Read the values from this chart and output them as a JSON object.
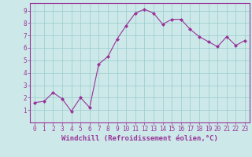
{
  "x": [
    0,
    1,
    2,
    3,
    4,
    5,
    6,
    7,
    8,
    9,
    10,
    11,
    12,
    13,
    14,
    15,
    16,
    17,
    18,
    19,
    20,
    21,
    22,
    23
  ],
  "y": [
    1.6,
    1.7,
    2.4,
    1.9,
    0.9,
    2.0,
    1.2,
    4.7,
    5.3,
    6.7,
    7.8,
    8.8,
    9.1,
    8.8,
    7.9,
    8.3,
    8.3,
    7.5,
    6.9,
    6.5,
    6.1,
    6.9,
    6.2,
    6.6
  ],
  "line_color": "#993399",
  "marker": "D",
  "marker_size": 2,
  "bg_color": "#cce8e8",
  "grid_color": "#99cccc",
  "xlabel": "Windchill (Refroidissement éolien,°C)",
  "xlim": [
    -0.5,
    23.5
  ],
  "ylim": [
    0,
    9.6
  ],
  "xticks": [
    0,
    1,
    2,
    3,
    4,
    5,
    6,
    7,
    8,
    9,
    10,
    11,
    12,
    13,
    14,
    15,
    16,
    17,
    18,
    19,
    20,
    21,
    22,
    23
  ],
  "yticks": [
    1,
    2,
    3,
    4,
    5,
    6,
    7,
    8,
    9
  ],
  "xlabel_color": "#993399",
  "tick_color": "#993399",
  "spine_color": "#993399",
  "tick_fontsize": 5.5,
  "xlabel_fontsize": 6.5
}
